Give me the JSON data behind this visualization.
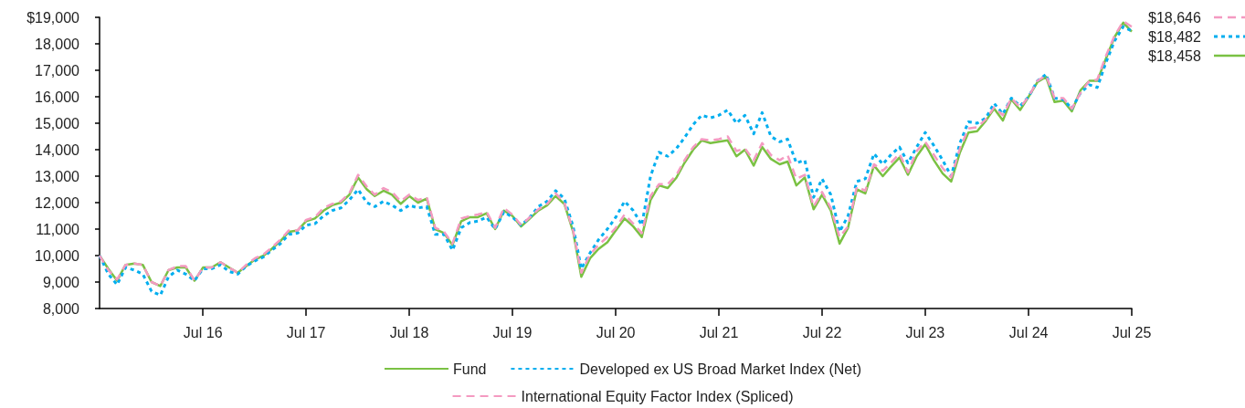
{
  "chart_data": {
    "type": "line",
    "x": [
      "2015-07",
      "2015-08",
      "2015-09",
      "2015-10",
      "2015-11",
      "2015-12",
      "2016-01",
      "2016-02",
      "2016-03",
      "2016-04",
      "2016-05",
      "2016-06",
      "2016-07",
      "2016-08",
      "2016-09",
      "2016-10",
      "2016-11",
      "2016-12",
      "2017-01",
      "2017-02",
      "2017-03",
      "2017-04",
      "2017-05",
      "2017-06",
      "2017-07",
      "2017-08",
      "2017-09",
      "2017-10",
      "2017-11",
      "2017-12",
      "2018-01",
      "2018-02",
      "2018-03",
      "2018-04",
      "2018-05",
      "2018-06",
      "2018-07",
      "2018-08",
      "2018-09",
      "2018-10",
      "2018-11",
      "2018-12",
      "2019-01",
      "2019-02",
      "2019-03",
      "2019-04",
      "2019-05",
      "2019-06",
      "2019-07",
      "2019-08",
      "2019-09",
      "2019-10",
      "2019-11",
      "2019-12",
      "2020-01",
      "2020-02",
      "2020-03",
      "2020-04",
      "2020-05",
      "2020-06",
      "2020-07",
      "2020-08",
      "2020-09",
      "2020-10",
      "2020-11",
      "2020-12",
      "2021-01",
      "2021-02",
      "2021-03",
      "2021-04",
      "2021-05",
      "2021-06",
      "2021-07",
      "2021-08",
      "2021-09",
      "2021-10",
      "2021-11",
      "2021-12",
      "2022-01",
      "2022-02",
      "2022-03",
      "2022-04",
      "2022-05",
      "2022-06",
      "2022-07",
      "2022-08",
      "2022-09",
      "2022-10",
      "2022-11",
      "2022-12",
      "2023-01",
      "2023-02",
      "2023-03",
      "2023-04",
      "2023-05",
      "2023-06",
      "2023-07",
      "2023-08",
      "2023-09",
      "2023-10",
      "2023-11",
      "2023-12",
      "2024-01",
      "2024-02",
      "2024-03",
      "2024-04",
      "2024-05",
      "2024-06",
      "2024-07",
      "2024-08",
      "2024-09",
      "2024-10",
      "2024-11",
      "2024-12",
      "2025-01",
      "2025-02",
      "2025-03",
      "2025-04",
      "2025-05",
      "2025-06",
      "2025-07"
    ],
    "series": [
      {
        "name": "Fund",
        "color": "#7ac143",
        "line_style": "solid",
        "values": [
          10000,
          9500,
          9050,
          9650,
          9700,
          9650,
          9000,
          8850,
          9450,
          9550,
          9550,
          9050,
          9550,
          9550,
          9750,
          9550,
          9350,
          9600,
          9850,
          10000,
          10250,
          10550,
          10900,
          10950,
          11300,
          11400,
          11700,
          11900,
          12000,
          12300,
          12950,
          12500,
          12250,
          12450,
          12300,
          11950,
          12250,
          12000,
          12150,
          11000,
          10850,
          10400,
          11300,
          11450,
          11450,
          11600,
          11000,
          11700,
          11500,
          11100,
          11400,
          11700,
          11900,
          12250,
          11950,
          10900,
          9200,
          9900,
          10250,
          10500,
          10950,
          11400,
          11100,
          10700,
          12100,
          12650,
          12550,
          12950,
          13500,
          14000,
          14350,
          14250,
          14300,
          14350,
          13750,
          14000,
          13400,
          14100,
          13650,
          13450,
          13550,
          12650,
          12950,
          11750,
          12300,
          11700,
          10450,
          11050,
          12500,
          12350,
          13400,
          13000,
          13350,
          13700,
          13050,
          13750,
          14200,
          13600,
          13100,
          12800,
          13900,
          14650,
          14700,
          15100,
          15550,
          15100,
          15900,
          15500,
          16000,
          16550,
          16750,
          15800,
          15850,
          15450,
          16250,
          16600,
          16600,
          17450,
          18250,
          18800,
          18458
        ]
      },
      {
        "name": "Developed ex US Broad Market Index (Net)",
        "color": "#00aeef",
        "line_style": "dotted",
        "values": [
          10000,
          9300,
          8900,
          9550,
          9450,
          9300,
          8650,
          8500,
          9200,
          9450,
          9300,
          9050,
          9500,
          9500,
          9650,
          9400,
          9300,
          9600,
          9800,
          9950,
          10200,
          10450,
          10800,
          10850,
          11150,
          11200,
          11500,
          11700,
          11800,
          12100,
          12500,
          12000,
          11850,
          12050,
          11900,
          11700,
          11900,
          11800,
          11850,
          10800,
          10800,
          10200,
          11050,
          11250,
          11300,
          11450,
          11000,
          11650,
          11450,
          11150,
          11450,
          11850,
          12050,
          12450,
          12150,
          11100,
          9500,
          10100,
          10600,
          11000,
          11450,
          12050,
          11700,
          11150,
          13000,
          13900,
          13750,
          14050,
          14450,
          14950,
          15300,
          15200,
          15300,
          15500,
          15000,
          15300,
          14600,
          15400,
          14500,
          14300,
          14400,
          13500,
          13600,
          12200,
          12900,
          12300,
          10900,
          11500,
          12800,
          12900,
          13850,
          13450,
          13800,
          14100,
          13500,
          14100,
          14650,
          14150,
          13600,
          13000,
          14250,
          15050,
          15000,
          15200,
          15750,
          15350,
          15950,
          15650,
          16000,
          16600,
          16850,
          15950,
          15900,
          15550,
          16150,
          16450,
          16350,
          17300,
          18100,
          18650,
          18482
        ]
      },
      {
        "name": "International Equity Factor Index (Spliced)",
        "color": "#f49ac1",
        "line_style": "dashed",
        "values": [
          10000,
          9450,
          9100,
          9650,
          9700,
          9650,
          9000,
          8850,
          9450,
          9600,
          9600,
          9050,
          9550,
          9550,
          9750,
          9550,
          9350,
          9650,
          9900,
          10050,
          10300,
          10600,
          10950,
          10950,
          11350,
          11450,
          11800,
          11950,
          12050,
          12350,
          13050,
          12600,
          12300,
          12550,
          12400,
          12050,
          12300,
          12100,
          12200,
          11050,
          10900,
          10450,
          11400,
          11500,
          11550,
          11650,
          11050,
          11800,
          11550,
          11150,
          11450,
          11750,
          11950,
          12350,
          12000,
          10950,
          9350,
          10050,
          10400,
          10700,
          11050,
          11550,
          11200,
          10850,
          12250,
          12700,
          12700,
          13050,
          13600,
          14100,
          14400,
          14350,
          14400,
          14500,
          13950,
          14050,
          13600,
          14250,
          13800,
          13600,
          13800,
          12900,
          13050,
          11850,
          12400,
          11800,
          10700,
          11100,
          12600,
          12450,
          13450,
          13200,
          13500,
          13850,
          13150,
          13950,
          14300,
          13800,
          13300,
          12950,
          14050,
          14800,
          14850,
          15150,
          15600,
          15300,
          15950,
          15600,
          16000,
          16600,
          16800,
          15950,
          15950,
          15550,
          16150,
          16600,
          16650,
          17550,
          18300,
          18850,
          18646
        ]
      }
    ],
    "xlim": [
      "2015-07",
      "2025-07"
    ],
    "xticks": [
      {
        "value": "2016-07",
        "label": "Jul 16"
      },
      {
        "value": "2017-07",
        "label": "Jul 17"
      },
      {
        "value": "2018-07",
        "label": "Jul 18"
      },
      {
        "value": "2019-07",
        "label": "Jul 19"
      },
      {
        "value": "2020-07",
        "label": "Jul 20"
      },
      {
        "value": "2021-07",
        "label": "Jul 21"
      },
      {
        "value": "2022-07",
        "label": "Jul 22"
      },
      {
        "value": "2023-07",
        "label": "Jul 23"
      },
      {
        "value": "2024-07",
        "label": "Jul 24"
      },
      {
        "value": "2025-07",
        "label": "Jul 25"
      }
    ],
    "ylim": [
      8000,
      19000
    ],
    "yticks": [
      {
        "value": 8000,
        "label": "8,000"
      },
      {
        "value": 9000,
        "label": "9,000"
      },
      {
        "value": 10000,
        "label": "10,000"
      },
      {
        "value": 11000,
        "label": "11,000"
      },
      {
        "value": 12000,
        "label": "12,000"
      },
      {
        "value": 13000,
        "label": "13,000"
      },
      {
        "value": 14000,
        "label": "14,000"
      },
      {
        "value": 15000,
        "label": "15,000"
      },
      {
        "value": 16000,
        "label": "16,000"
      },
      {
        "value": 17000,
        "label": "17,000"
      },
      {
        "value": 18000,
        "label": "18,000"
      },
      {
        "value": 19000,
        "label": "$19,000"
      }
    ],
    "annotations": [
      {
        "text": "$18,646",
        "x": "2025-07",
        "y": 18646
      },
      {
        "text": "$18,482",
        "x": "2025-07",
        "y": 18482
      },
      {
        "text": "$18,458",
        "x": "2025-07",
        "y": 18458
      }
    ],
    "grid": false,
    "legend": "bottom",
    "marker": "none"
  }
}
